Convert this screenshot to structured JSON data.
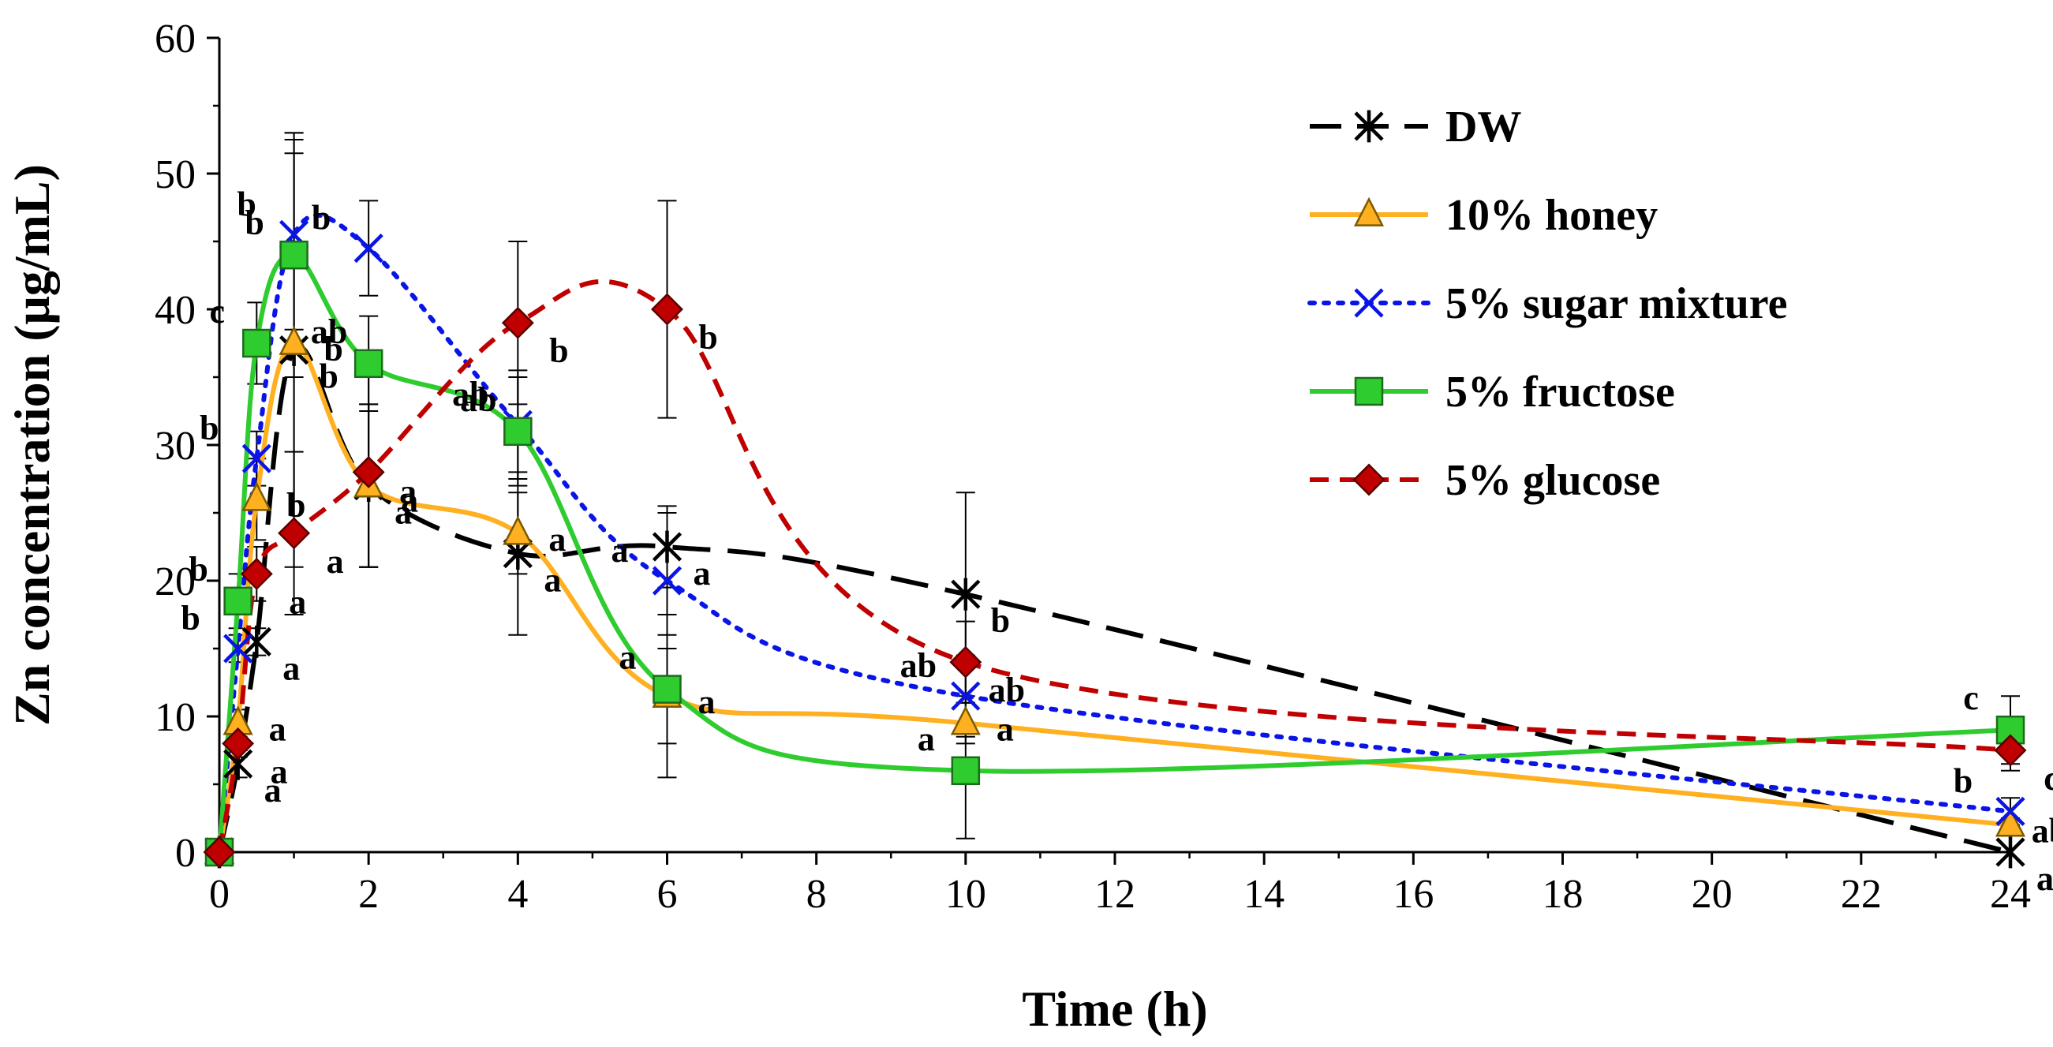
{
  "chart_data": {
    "type": "line",
    "xlabel": "Time (h)",
    "ylabel": "Zn concentration (μg/mL)",
    "xlim": [
      0,
      24
    ],
    "ylim": [
      0,
      60
    ],
    "x_ticks": [
      "0",
      "2",
      "4",
      "6",
      "8",
      "10",
      "12",
      "14",
      "16",
      "18",
      "20",
      "22",
      "24"
    ],
    "y_ticks": [
      "0",
      "10",
      "20",
      "30",
      "40",
      "50",
      "60"
    ],
    "legend_position": "top-right",
    "x": [
      0,
      0.25,
      0.5,
      1,
      2,
      4,
      6,
      10,
      24
    ],
    "series": [
      {
        "name": "DW",
        "color": "#000000",
        "marker": "asterisk",
        "line_style": "long-dash",
        "values": [
          0,
          6.5,
          15.5,
          37,
          27,
          22,
          22.5,
          19,
          0
        ],
        "errors": [
          0,
          1,
          1,
          16,
          6,
          6,
          3,
          7.5,
          0
        ],
        "letters": [
          "",
          "a",
          "a",
          "b",
          "a",
          "a",
          "a",
          "b",
          "a"
        ]
      },
      {
        "name": "10% honey",
        "color": "#FFB020",
        "marker": "triangle",
        "line_style": "solid",
        "values": [
          0,
          9.5,
          26,
          37.5,
          27,
          23.5,
          11.5,
          9.5,
          2
        ],
        "errors": [
          0,
          1,
          3,
          14,
          6,
          3,
          6,
          1.5,
          0.5
        ],
        "letters": [
          "",
          "a",
          "b",
          "b",
          "a",
          "a",
          "a",
          "a",
          "ab"
        ]
      },
      {
        "name": "5% sugar mixture",
        "color": "#0A14E6",
        "marker": "x",
        "line_style": "dotted",
        "values": [
          0,
          15,
          29,
          45.5,
          44.5,
          31.5,
          20,
          11.5,
          3
        ],
        "errors": [
          0,
          1,
          2,
          7,
          3.5,
          4,
          5,
          3,
          1
        ],
        "letters": [
          "",
          "b",
          "b",
          "b",
          "b",
          "ab",
          "a",
          "ab",
          "b"
        ]
      },
      {
        "name": "5% fructose",
        "color": "#2ECC2E",
        "marker": "square",
        "line_style": "solid",
        "values": [
          0,
          18.5,
          37.5,
          44,
          36,
          31,
          12,
          6,
          9
        ],
        "errors": [
          0,
          2,
          3,
          9,
          3.5,
          4,
          4,
          5,
          2.5
        ],
        "letters": [
          "",
          "b",
          "c",
          "b",
          "ab",
          "ab",
          "a",
          "a",
          "c"
        ]
      },
      {
        "name": "5% glucose",
        "color": "#C00000",
        "marker": "diamond",
        "line_style": "short-dash",
        "values": [
          0,
          8,
          20.5,
          23.5,
          28,
          39,
          40,
          14,
          7.5
        ],
        "errors": [
          0,
          1,
          2,
          6,
          7,
          6,
          8,
          3,
          1.5
        ],
        "letters": [
          "",
          "a",
          "a",
          "a",
          "a",
          "b",
          "b",
          "ab",
          "c"
        ]
      }
    ]
  }
}
